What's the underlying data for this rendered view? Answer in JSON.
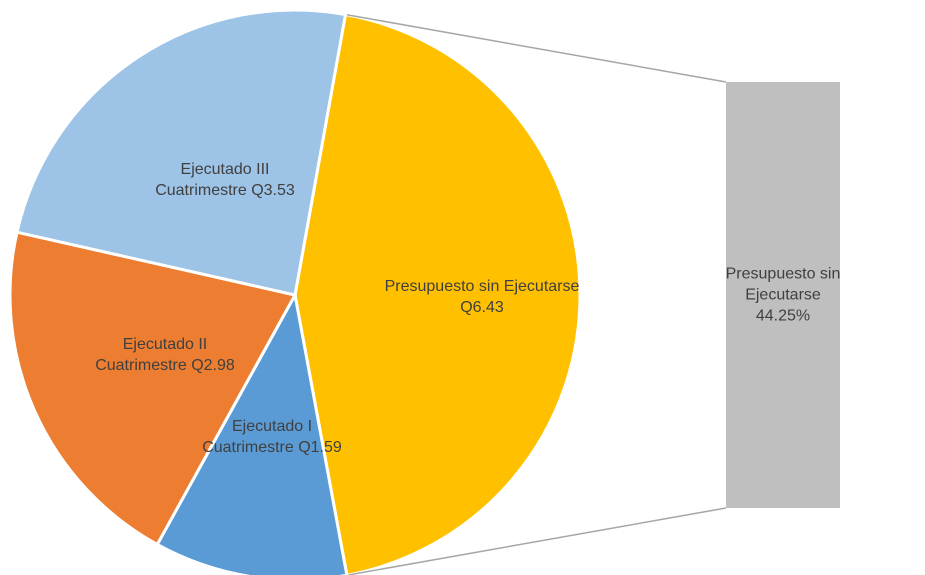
{
  "chart_data": {
    "type": "pie-of-bar",
    "categories": [
      "Presupuesto sin Ejecutarse",
      "Ejecutado I Cuatrimestre",
      "Ejecutado II Cuatrimestre",
      "Ejecutado III Cuatrimestre"
    ],
    "values": [
      6.43,
      1.59,
      2.98,
      3.53
    ],
    "value_labels": [
      "Presupuesto sin Ejecutarse Q6.43",
      "Ejecutado I Cuatrimestre Q1.59",
      "Ejecutado II Cuatrimestre Q2.98",
      "Ejecutado III Cuatrimestre Q3.53"
    ],
    "colors": [
      "#FFC000",
      "#5B9BD5",
      "#ED7D31",
      "#9DC3E6"
    ],
    "bar_value": 44.25,
    "bar_value_label": "44.25%",
    "bar_color": "#BFBFBF"
  }
}
